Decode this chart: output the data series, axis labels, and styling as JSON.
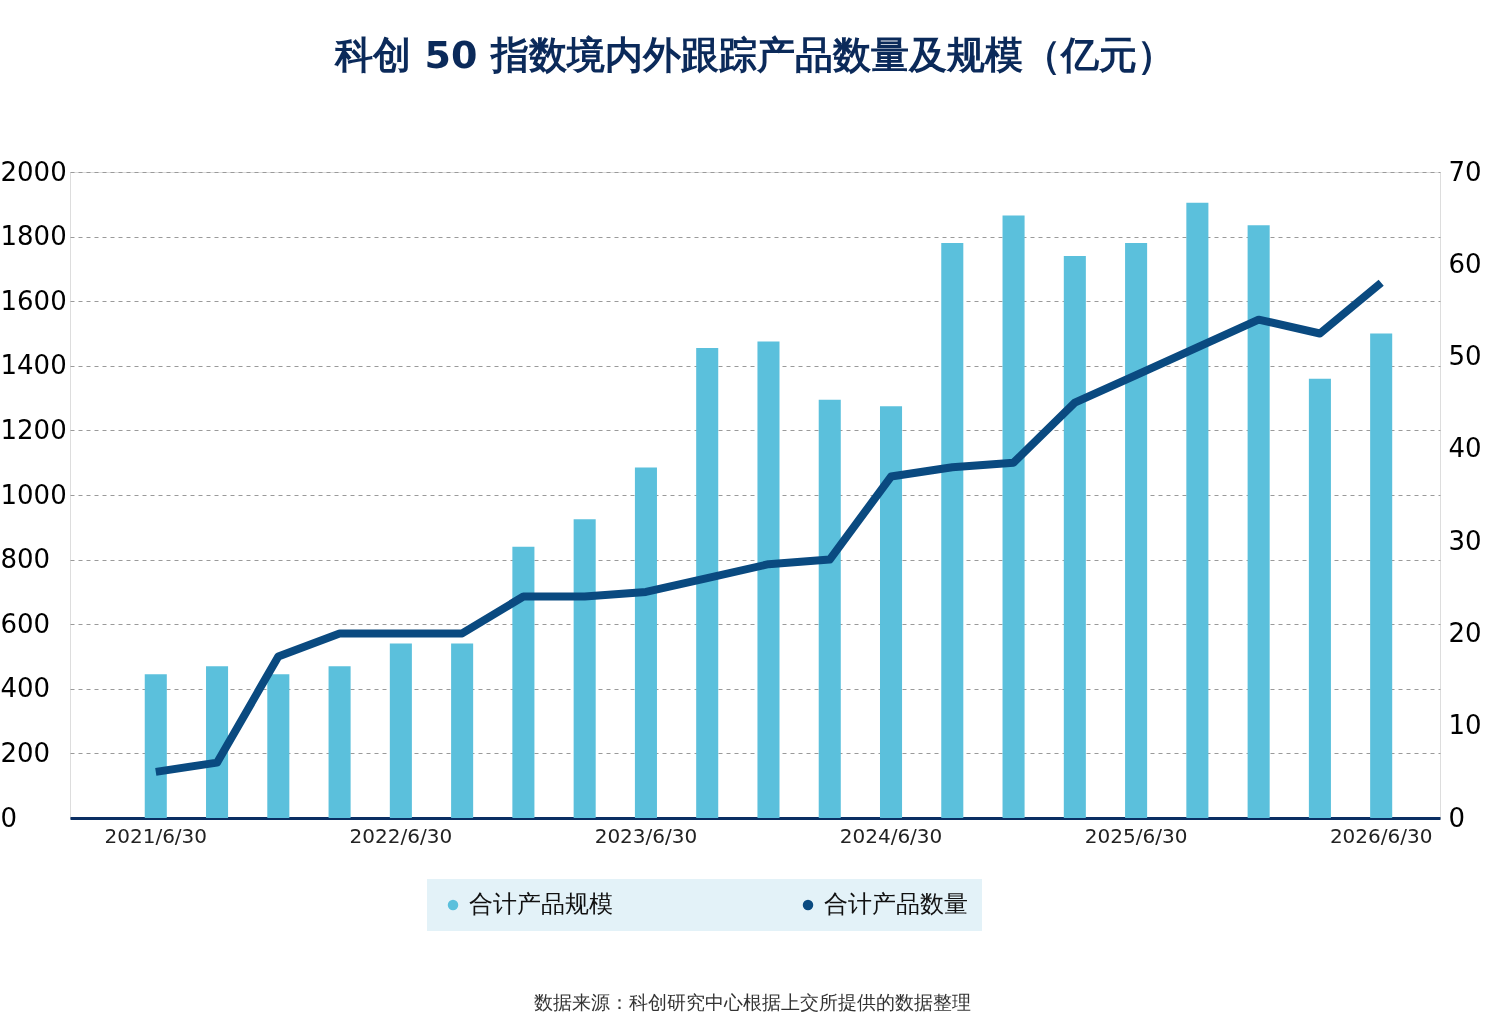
{
  "chart_data": {
    "type": "bar",
    "title": "科创 50 指数境内外跟踪产品数量及规模（亿元）",
    "categories": [
      "2021/6/30",
      null,
      null,
      null,
      "2022/6/30",
      null,
      null,
      null,
      "2023/6/30",
      null,
      null,
      null,
      "2024/6/30",
      null,
      null,
      null,
      "2025/6/30",
      null,
      null,
      null,
      "2026/6/30"
    ],
    "series": [
      {
        "name": "合计产品规模",
        "color": "#5bc0dc",
        "values": [
          445,
          470,
          445,
          470,
          540,
          540,
          840,
          925,
          1085,
          1455,
          1475,
          1295,
          1275,
          1780,
          1865,
          1740,
          1780,
          1905,
          1835,
          1360,
          1500
        ]
      },
      {
        "name": "合计产品数量",
        "type": "line",
        "axis": "y2",
        "color": "#0a4a80",
        "values": [
          5,
          6,
          17.5,
          20,
          20,
          20,
          24,
          24,
          24.5,
          26,
          27.5,
          28,
          37,
          38,
          38.5,
          45,
          48,
          51,
          54,
          52.5,
          58
        ]
      }
    ],
    "ylim": [
      0,
      2000
    ],
    "yticks": [
      0,
      200,
      400,
      600,
      800,
      1000,
      1200,
      1400,
      1600,
      1800,
      2000
    ],
    "y2lim": [
      0,
      70
    ],
    "y2ticks": [
      0,
      10,
      20,
      30,
      40,
      50,
      60,
      70
    ],
    "grid": "y",
    "legend": "bottom",
    "line_style": "solid",
    "annotations": [
      "数据来源：科创研究中心根据上交所提供的数据整理"
    ]
  }
}
